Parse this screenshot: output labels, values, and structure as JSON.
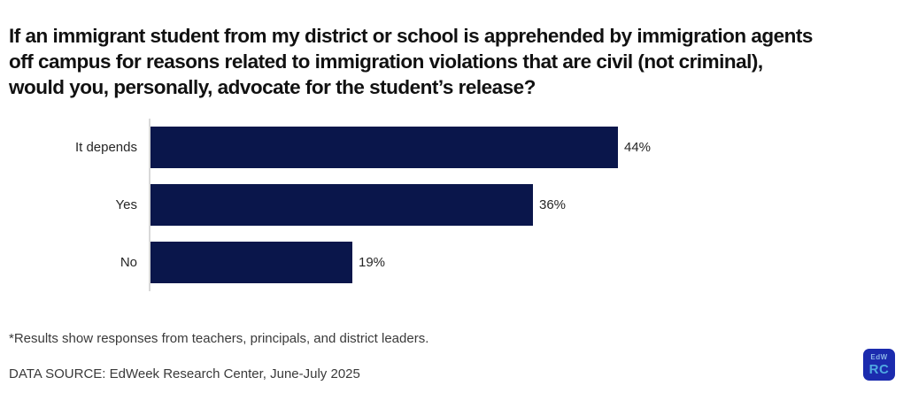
{
  "title": {
    "lines": [
      "If an immigrant student from my district or school is apprehended by immigration agents",
      "off campus for reasons related to immigration violations that are civil (not criminal),",
      "would you, personally, advocate for the student’s release?"
    ]
  },
  "chart_data": {
    "type": "bar",
    "orientation": "horizontal",
    "title": "If an immigrant student from my district or school is apprehended by immigration agents off campus for reasons related to immigration violations that are civil (not criminal), would you, personally, advocate for the student’s release?",
    "categories": [
      "It depends",
      "Yes",
      "No"
    ],
    "values": [
      44,
      36,
      19
    ],
    "value_labels": [
      "44%",
      "36%",
      "19%"
    ],
    "xlim": [
      0,
      100
    ],
    "grid": false,
    "legend": false,
    "bar_color": "#0A164B",
    "axis_line_color": "#D9D9D9",
    "label_color": "#262626"
  },
  "footnote": "*Results show responses from teachers, principals, and district leaders.",
  "data_source": "DATA SOURCE: EdWeek Research Center, June-July 2025",
  "logo": {
    "top_text": "EdW",
    "bottom_text": "RC",
    "bg_color": "#1B2BAE",
    "top_text_color": "#8CB6E8",
    "bottom_text_color": "#4FA9E2"
  }
}
